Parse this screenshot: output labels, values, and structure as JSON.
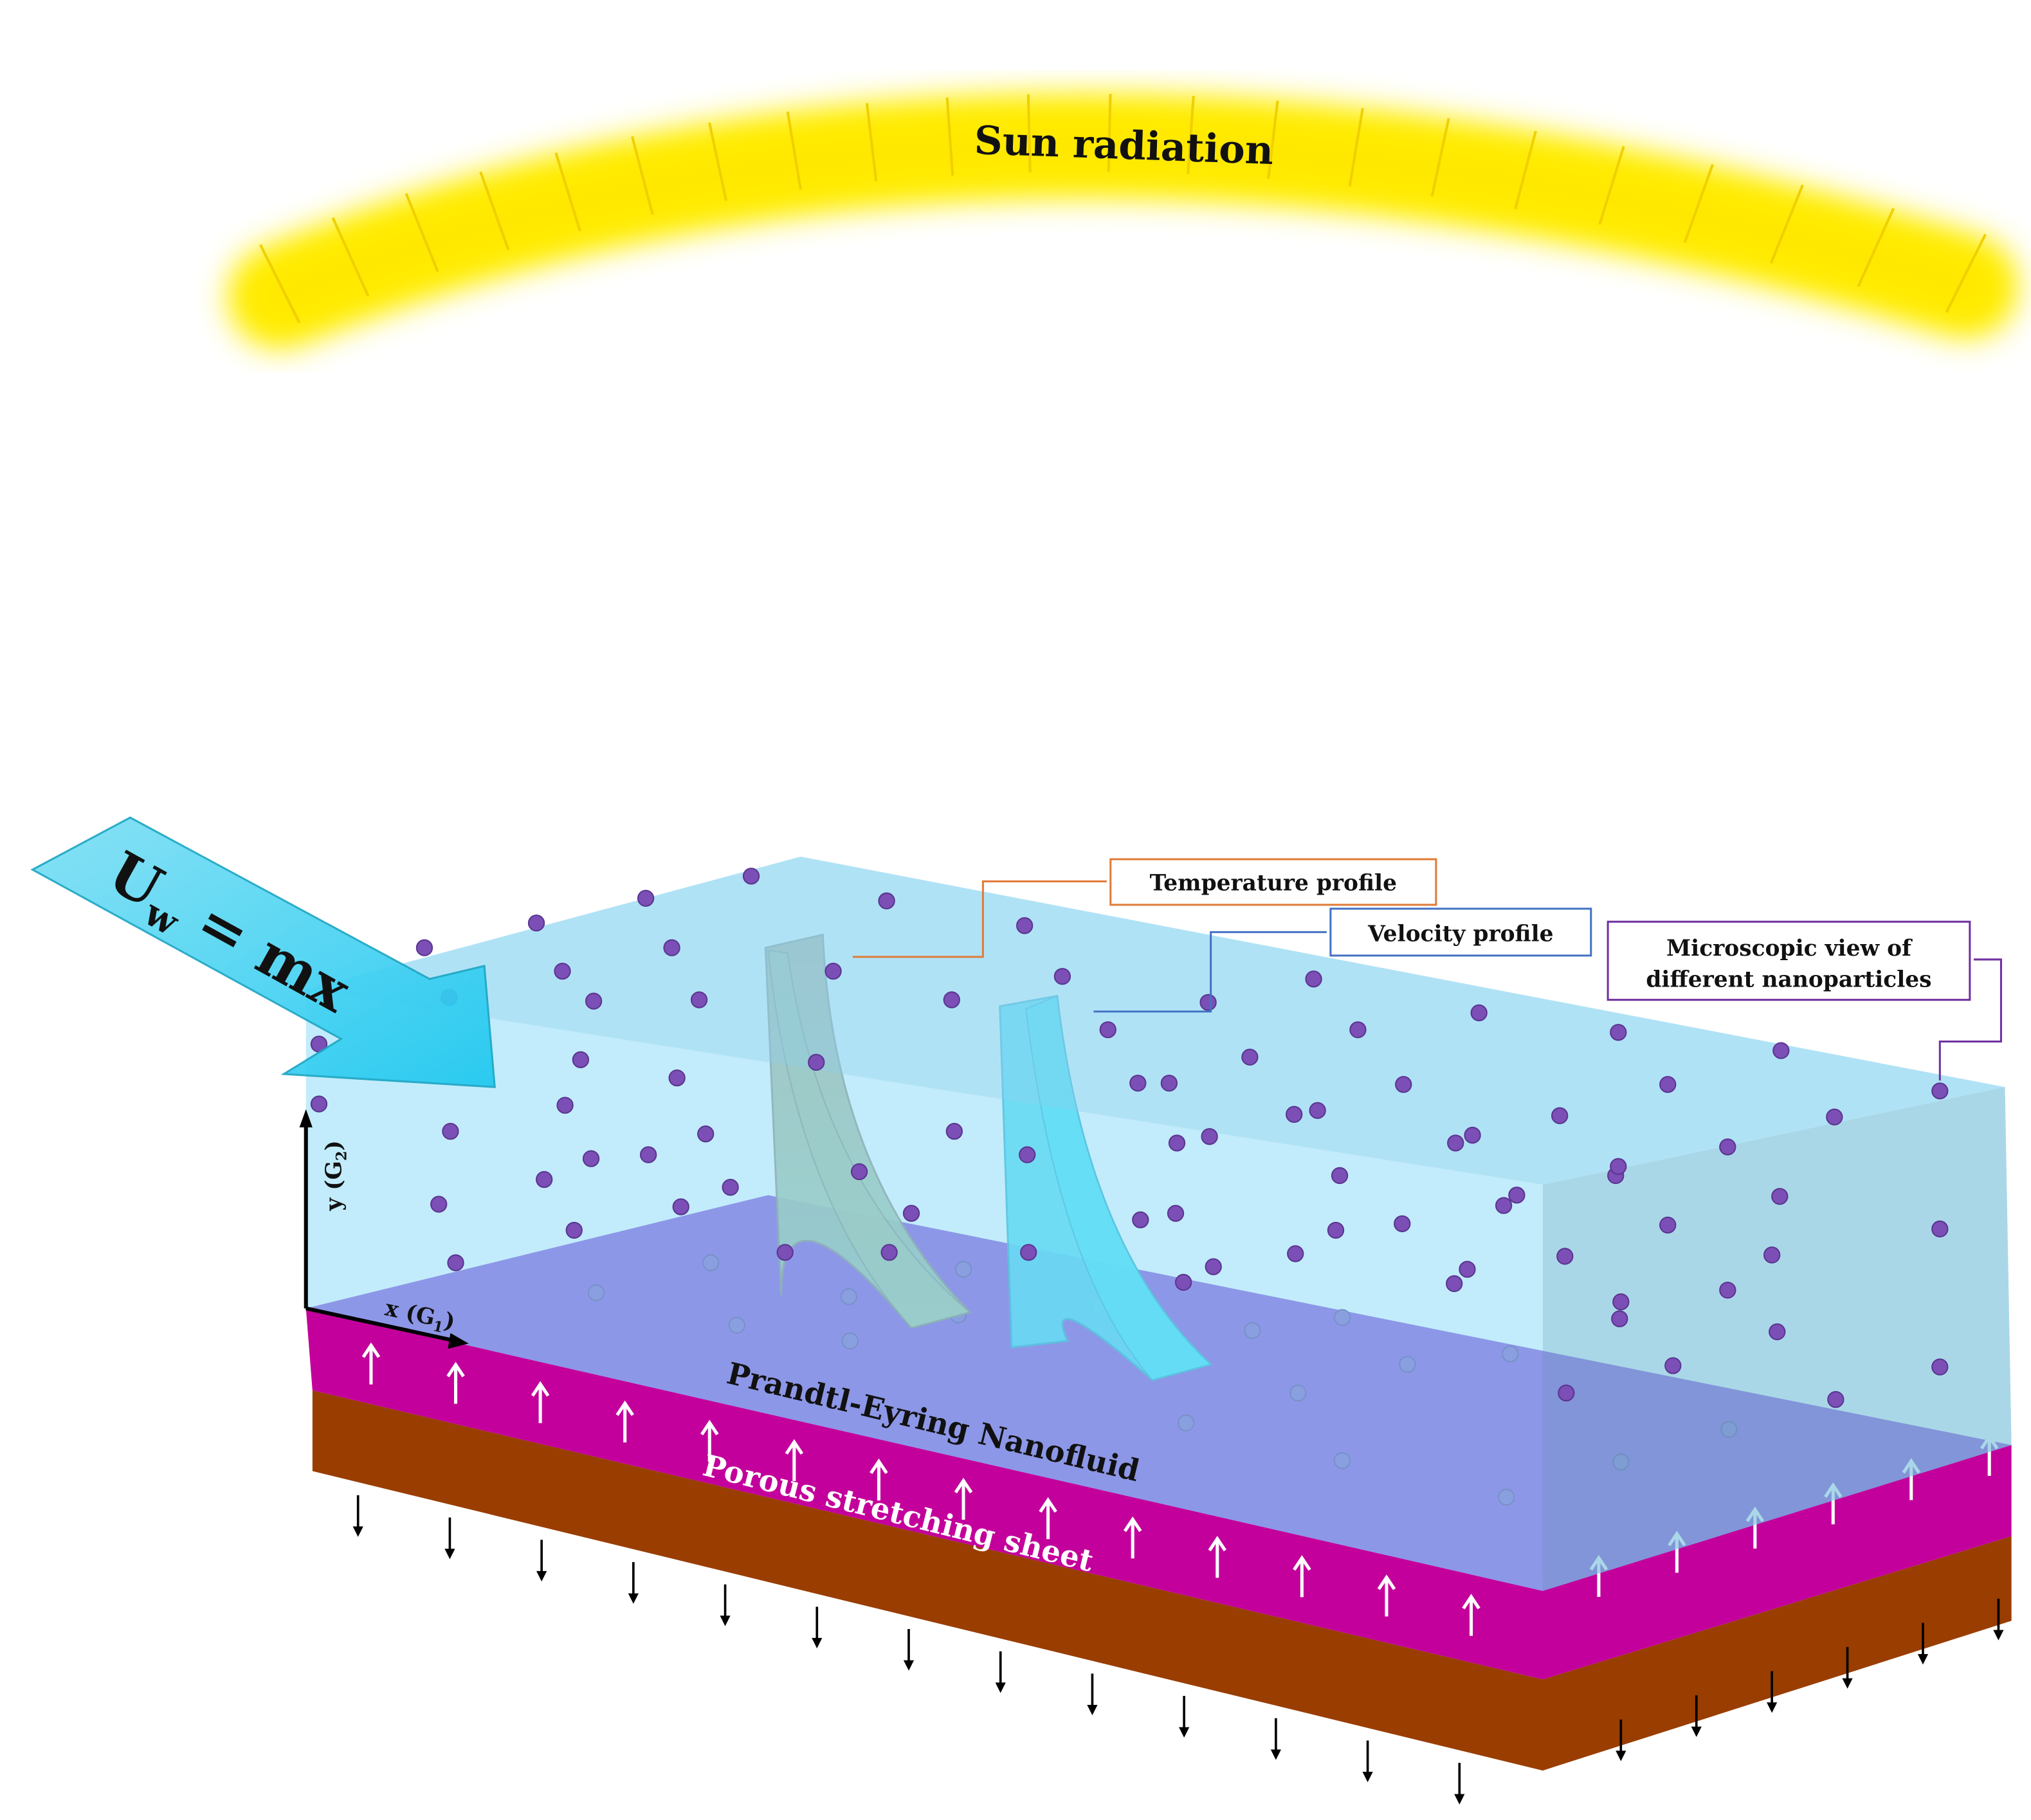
{
  "sun": {
    "label": "Sun radiation"
  },
  "velocity": {
    "base": "U",
    "sub": "w",
    "rest": " = mx"
  },
  "callouts": {
    "temperature": "Temperature profile",
    "velocity": "Velocity profile",
    "microscopic": [
      "Microscopic view of",
      "different nanoparticles"
    ]
  },
  "axes": {
    "y": {
      "base": "y (G",
      "sub": "2",
      "end": ")"
    },
    "x": {
      "base": "x (G",
      "sub": "1",
      "end": ")"
    }
  },
  "layers": {
    "fluid": "Prandtl-Eyring Nanofluid",
    "sheet": "Porous stretching sheet"
  }
}
